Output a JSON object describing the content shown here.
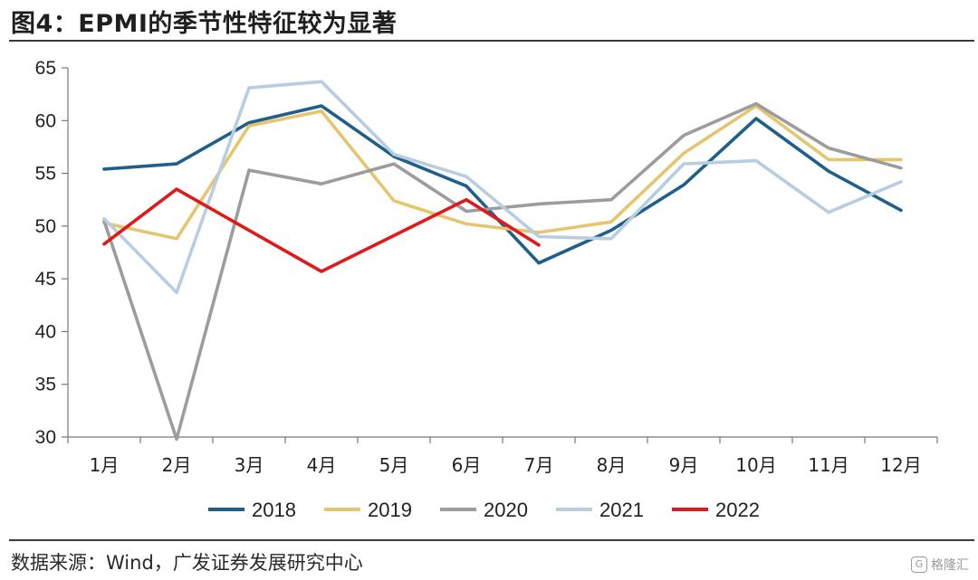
{
  "title": "图4：EPMI的季节性特征较为显著",
  "source": "数据来源：Wind，广发证券发展研究中心",
  "watermark": "格隆汇",
  "chart_data": {
    "type": "line",
    "title": "",
    "xlabel": "",
    "ylabel": "",
    "ylim": [
      30,
      65
    ],
    "yticks": [
      30,
      35,
      40,
      45,
      50,
      55,
      60,
      65
    ],
    "categories": [
      "1月",
      "2月",
      "3月",
      "4月",
      "5月",
      "6月",
      "7月",
      "8月",
      "9月",
      "10月",
      "11月",
      "12月"
    ],
    "grid": false,
    "legend_position": "bottom",
    "series": [
      {
        "name": "2018",
        "color": "#1f5f8b",
        "values": [
          55.4,
          55.9,
          59.8,
          61.4,
          56.6,
          53.8,
          46.5,
          49.6,
          53.9,
          60.2,
          55.2,
          51.5
        ]
      },
      {
        "name": "2019",
        "color": "#e5c66f",
        "values": [
          50.3,
          48.8,
          59.5,
          60.9,
          52.4,
          50.2,
          49.4,
          50.4,
          56.9,
          61.4,
          56.3,
          56.3
        ]
      },
      {
        "name": "2020",
        "color": "#9c9c9c",
        "values": [
          50.5,
          29.8,
          55.3,
          54.0,
          55.9,
          51.4,
          52.1,
          52.5,
          58.6,
          61.6,
          57.4,
          55.5
        ]
      },
      {
        "name": "2021",
        "color": "#b8cde2",
        "values": [
          50.7,
          43.7,
          63.1,
          63.7,
          56.8,
          54.7,
          49.0,
          48.8,
          55.9,
          56.2,
          51.3,
          54.2
        ]
      },
      {
        "name": "2022",
        "color": "#e0191b",
        "values": [
          48.3,
          53.5,
          null,
          45.7,
          null,
          52.5,
          48.2,
          null,
          null,
          null,
          null,
          null
        ]
      }
    ]
  }
}
